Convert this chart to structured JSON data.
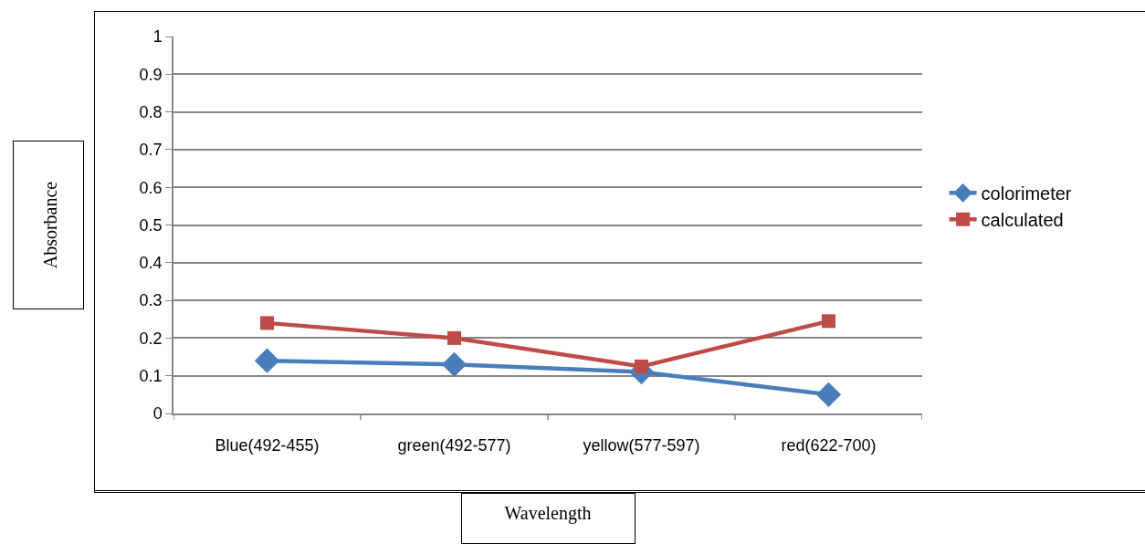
{
  "chart_data": {
    "type": "line",
    "xlabel": "Wavelength",
    "ylabel": "Absorbance",
    "categories": [
      "Blue(492-455)",
      "green(492-577)",
      "yellow(577-597)",
      "red(622-700)"
    ],
    "series": [
      {
        "name": "colorimeter",
        "color": "#4a7ebb",
        "marker": "diamond",
        "values": [
          0.14,
          0.13,
          0.11,
          0.05
        ]
      },
      {
        "name": "calculated",
        "color": "#be4b48",
        "marker": "square",
        "values": [
          0.24,
          0.2,
          0.125,
          0.245
        ]
      }
    ],
    "ylim": [
      0,
      1
    ],
    "yticks": [
      0,
      0.1,
      0.2,
      0.3,
      0.4,
      0.5,
      0.6,
      0.7,
      0.8,
      0.9,
      1
    ],
    "grid": "y",
    "legend": "right",
    "line_style": "solid"
  }
}
